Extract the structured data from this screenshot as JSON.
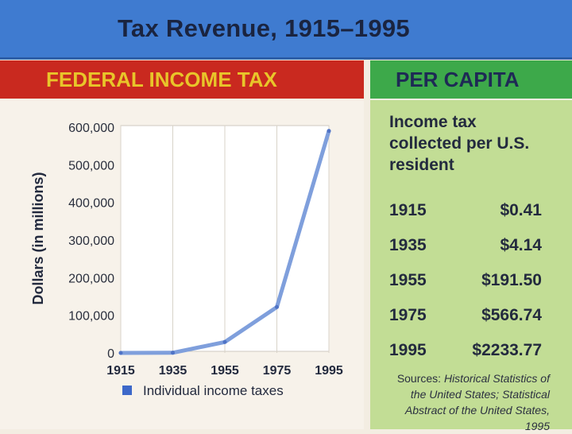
{
  "title": "Tax Revenue,  1915–1995",
  "left_header": "FEDERAL INCOME TAX",
  "right_header": "PER CAPITA",
  "per_capita": {
    "description": "Income tax collected per U.S. resident",
    "rows": [
      {
        "year": "1915",
        "amount": "$0.41"
      },
      {
        "year": "1935",
        "amount": "$4.14"
      },
      {
        "year": "1955",
        "amount": "$191.50"
      },
      {
        "year": "1975",
        "amount": "$566.74"
      },
      {
        "year": "1995",
        "amount": "$2233.77"
      }
    ],
    "sources_prefix": "Sources: ",
    "sources_text": "Historical Statistics of the United States; Statistical Abstract of the United States, 1995"
  },
  "colors": {
    "title_bar": "#3f7bd0",
    "federal_header": "#c9291f",
    "federal_header_text": "#e8c52a",
    "per_capita_header": "#3da94a",
    "per_capita_panel": "#c2dd95",
    "series_line": "#7f9fdc",
    "legend_swatch": "#3d68c9"
  },
  "chart_data": {
    "type": "line",
    "title": "",
    "xlabel": "",
    "ylabel": "Dollars (in millions)",
    "x": [
      1915,
      1935,
      1955,
      1975,
      1995
    ],
    "x_tick_labels": [
      "1915",
      "1935",
      "1955",
      "1975",
      "1995"
    ],
    "y_ticks": [
      0,
      100000,
      200000,
      300000,
      400000,
      500000,
      600000
    ],
    "y_tick_labels": [
      "0",
      "100,000",
      "200,000",
      "300,000",
      "400,000",
      "500,000",
      "600,000"
    ],
    "ylim": [
      0,
      600000
    ],
    "grid": "vertical",
    "legend_position": "bottom",
    "series": [
      {
        "name": "Individual income taxes",
        "values": [
          0,
          500,
          29000,
          122000,
          590000
        ]
      }
    ]
  }
}
